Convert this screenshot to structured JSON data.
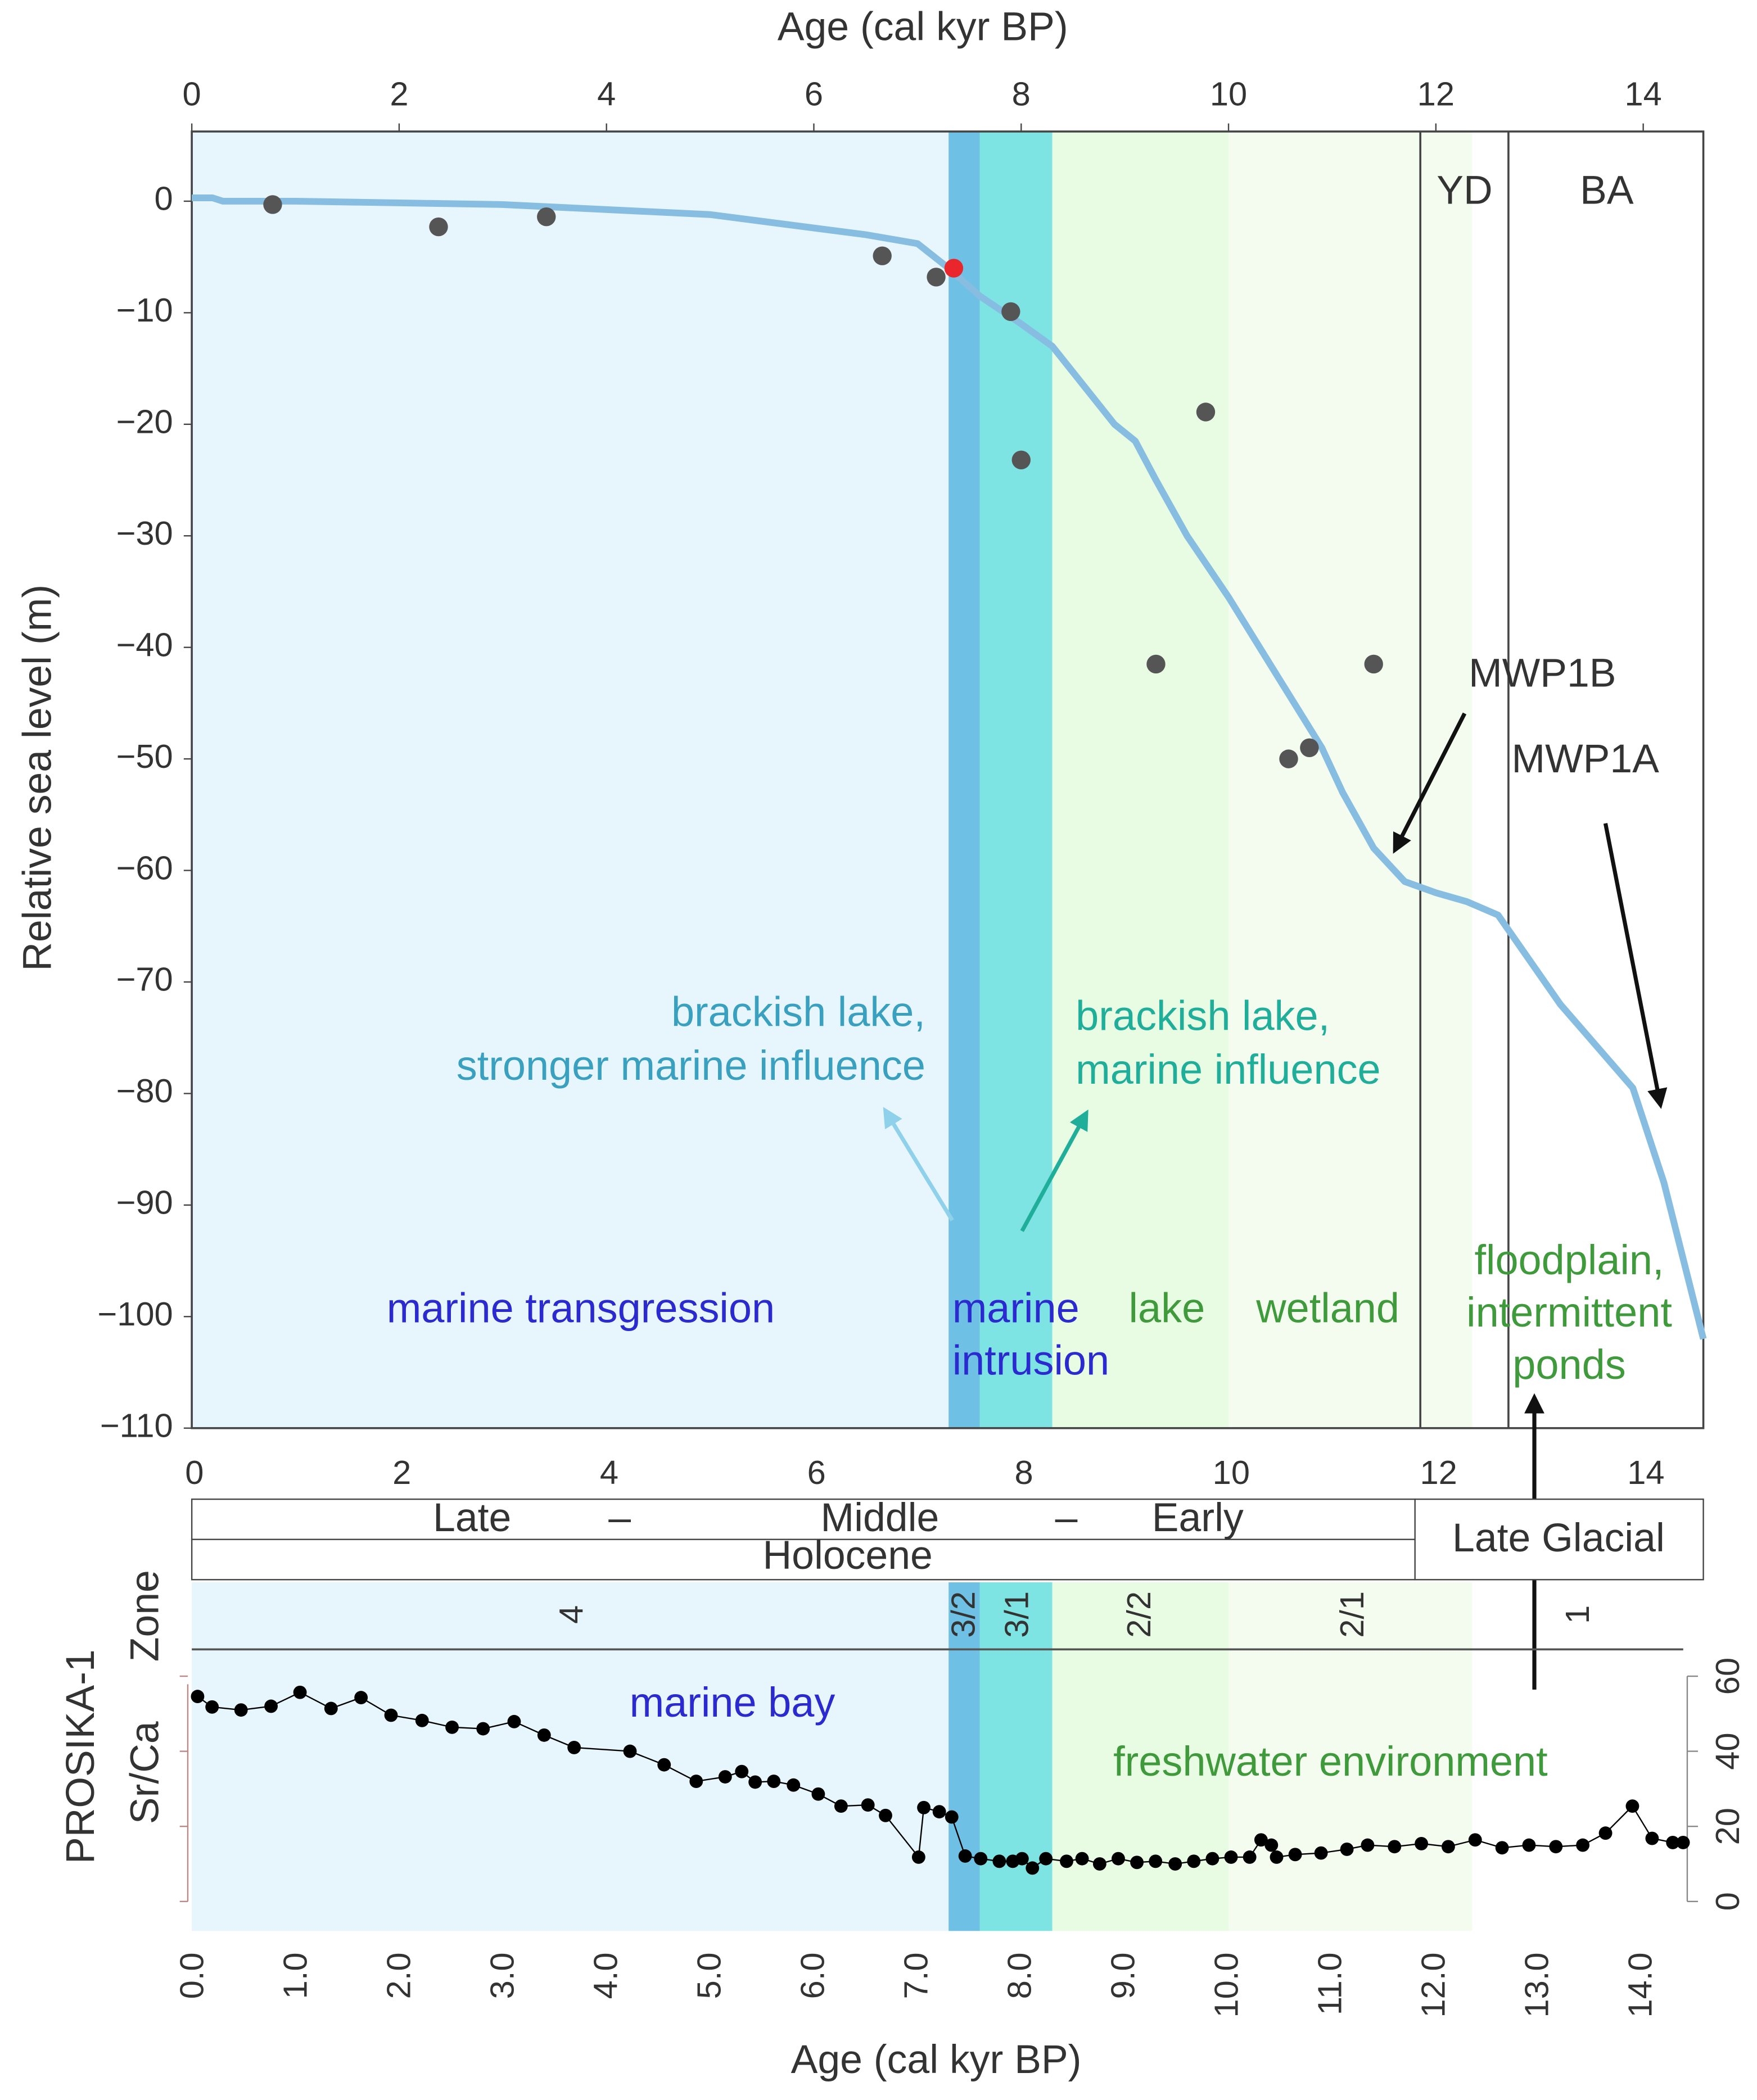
{
  "chart_data": [
    {
      "type": "line",
      "x_label": "Age (cal kyr BP)",
      "y_label": "Relative sea level (m)",
      "xlim": [
        0,
        14.58
      ],
      "ylim": [
        -110,
        6.25
      ],
      "xticks": [
        0,
        2,
        4,
        6,
        8,
        10,
        12,
        14
      ],
      "yticks": [
        0,
        {
          "value": -10,
          "label": "−10"
        },
        {
          "value": -20,
          "label": "−20"
        },
        {
          "value": -30,
          "label": "−30"
        },
        {
          "value": -40,
          "label": "−40"
        },
        {
          "value": -50,
          "label": "−50"
        },
        {
          "value": -60,
          "label": "−60"
        },
        {
          "value": -70,
          "label": "−70"
        },
        {
          "value": -80,
          "label": "−80"
        },
        {
          "value": -90,
          "label": "−90"
        },
        {
          "value": -100,
          "label": "−100"
        },
        {
          "value": -110,
          "label": "−110"
        }
      ],
      "bands": [
        {
          "from": 0,
          "to": 7.3,
          "color": "#e6f6fc"
        },
        {
          "from": 7.3,
          "to": 7.6,
          "color": "#6ec1e4"
        },
        {
          "from": 7.6,
          "to": 8.3,
          "color": "#7ee3e3"
        },
        {
          "from": 8.3,
          "to": 10,
          "color": "#e8fbe3"
        },
        {
          "from": 10,
          "to": 12.35,
          "color": "#f3fcef"
        }
      ],
      "boundaries": [
        11.85,
        12.7
      ],
      "series": [
        {
          "type": "line",
          "color": "#86bde0",
          "x": [
            0,
            0.2,
            0.3,
            1,
            3,
            5,
            6.5,
            7,
            7.3,
            7.6,
            8,
            8.3,
            8.6,
            8.9,
            9.1,
            9.3,
            9.6,
            10,
            10.5,
            10.9,
            11.1,
            11.4,
            11.7,
            12,
            12.3,
            12.6,
            13.2,
            13.9,
            14.2,
            14.58
          ],
          "values": [
            0.3,
            0.3,
            0,
            0,
            -0.3,
            -1.2,
            -3,
            -3.8,
            -6,
            -8.5,
            -11,
            -13,
            -16.5,
            -20,
            -21.5,
            -25,
            -30,
            -35.5,
            -43,
            -49,
            -53,
            -58,
            -61,
            -62,
            -62.8,
            -64,
            -72,
            -79.5,
            -88,
            -102
          ]
        },
        {
          "type": "scatter",
          "x": [
            0.78,
            2.38,
            3.42,
            6.66,
            7.18,
            7.35,
            7.9,
            8.0,
            9.78,
            9.3,
            10.58,
            10.78,
            11.4
          ],
          "values": [
            -0.3,
            -2.3,
            -1.4,
            -4.9,
            -6.8,
            -6,
            -9.9,
            -23.2,
            -18.9,
            -41.5,
            -50,
            -49,
            -41.5
          ],
          "colors": [
            "#555",
            "#555",
            "#555",
            "#555",
            "#555",
            "#e8262b",
            "#555",
            "#555",
            "#555",
            "#555",
            "#555",
            "#555",
            "#555"
          ]
        }
      ]
    },
    {
      "type": "line",
      "x_label": "Age (cal kyr BP)",
      "y_label": "Sr/Ca",
      "color": "#000",
      "xlim": [
        0,
        14.43
      ],
      "ylim": [
        0,
        60
      ],
      "xticks": [
        {
          "value": 0,
          "label": "0.0"
        },
        {
          "value": 1,
          "label": "1.0"
        },
        {
          "value": 2,
          "label": "2.0"
        },
        {
          "value": 3,
          "label": "3.0"
        },
        {
          "value": 4,
          "label": "4.0"
        },
        {
          "value": 5,
          "label": "5.0"
        },
        {
          "value": 6,
          "label": "6.0"
        },
        {
          "value": 7,
          "label": "7.0"
        },
        {
          "value": 8,
          "label": "8.0"
        },
        {
          "value": 9,
          "label": "9.0"
        },
        {
          "value": 10,
          "label": "10.0"
        },
        {
          "value": 11,
          "label": "11.0"
        },
        {
          "value": 12,
          "label": "12.0"
        },
        {
          "value": 13,
          "label": "13.0"
        },
        {
          "value": 14,
          "label": "14.0"
        }
      ],
      "yticks": [
        0,
        20,
        40,
        60
      ],
      "x": [
        0.03,
        0.17,
        0.45,
        0.74,
        1.02,
        1.32,
        1.61,
        1.9,
        2.2,
        2.49,
        2.79,
        3.09,
        3.38,
        3.67,
        4.21,
        4.54,
        4.85,
        5.13,
        5.29,
        5.42,
        5.6,
        5.79,
        6.03,
        6.25,
        6.51,
        6.68,
        7.0,
        7.05,
        7.2,
        7.32,
        7.45,
        7.6,
        7.78,
        7.91,
        8.0,
        8.1,
        8.23,
        8.43,
        8.58,
        8.75,
        8.93,
        9.11,
        9.29,
        9.48,
        9.66,
        9.84,
        10.02,
        10.2,
        10.31,
        10.41,
        10.46,
        10.64,
        10.89,
        11.14,
        11.34,
        11.6,
        11.86,
        12.12,
        12.38,
        12.64,
        12.9,
        13.16,
        13.42,
        13.64,
        13.9,
        14.09,
        14.29,
        14.39
      ],
      "values": [
        54.6,
        51.8,
        51,
        52,
        55.7,
        51.4,
        54.3,
        49.6,
        48.2,
        46.4,
        46,
        47.9,
        44.3,
        41,
        40,
        36.4,
        32,
        33.2,
        34.6,
        31.8,
        32,
        31,
        28.6,
        25.4,
        25.7,
        22.9,
        11.8,
        25,
        23.9,
        22.5,
        12.1,
        11.4,
        10.7,
        10.7,
        11.4,
        8.9,
        11.4,
        10.7,
        11.4,
        10,
        11.4,
        10.4,
        10.7,
        10,
        10.7,
        11.4,
        11.8,
        11.8,
        16.4,
        15,
        11.8,
        12.5,
        12.9,
        13.9,
        15,
        14.6,
        15.4,
        14.6,
        16.4,
        14.3,
        15,
        14.6,
        15,
        18.2,
        25.4,
        16.8,
        15.7,
        15.7
      ]
    }
  ],
  "labels": {
    "yd": "YD",
    "ba": "BA",
    "mwp1b": "MWP1B",
    "mwp1a": "MWP1A",
    "brackish_strong": [
      "brackish lake,",
      "stronger marine influence"
    ],
    "brackish": [
      "brackish lake,",
      "marine influence"
    ],
    "transgression": "marine transgression",
    "intrusion": [
      "marine",
      "intrusion"
    ],
    "lake": "lake",
    "wetland": "wetland",
    "floodplain": [
      "floodplain,",
      "intermittent",
      "ponds"
    ],
    "marine_bay": "marine bay",
    "freshwater": "freshwater environment"
  },
  "period_table": {
    "late": "Late",
    "dash1": "–",
    "middle": "Middle",
    "dash2": "–",
    "early": "Early",
    "holocene": "Holocene",
    "late_glacial": "Late Glacial"
  },
  "zones": {
    "title": "Zone",
    "core": "PROSIKA-1",
    "names": [
      "4",
      "3/2",
      "3/1",
      "2/2",
      "2/1",
      "1"
    ]
  }
}
